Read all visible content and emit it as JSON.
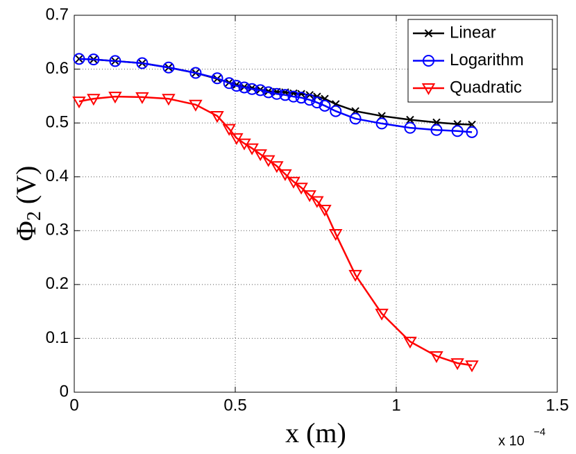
{
  "chart_data": {
    "type": "line",
    "xlabel": "x (m)",
    "x_scale_base": "x 10",
    "x_scale_exponent": "−4",
    "ylabel": "Φ",
    "ylabel_sub": "2",
    "ylabel_unit": "(V)",
    "x": [
      0.015,
      0.06,
      0.127,
      0.211,
      0.293,
      0.377,
      0.444,
      0.481,
      0.504,
      0.528,
      0.552,
      0.578,
      0.603,
      0.629,
      0.655,
      0.681,
      0.705,
      0.731,
      0.754,
      0.778,
      0.812,
      0.873,
      0.955,
      1.043,
      1.125,
      1.19,
      1.235
    ],
    "series": [
      {
        "name": "Linear",
        "color": "#000000",
        "marker": "x",
        "values": [
          0.619,
          0.618,
          0.615,
          0.611,
          0.603,
          0.593,
          0.582,
          0.575,
          0.571,
          0.567,
          0.565,
          0.562,
          0.559,
          0.558,
          0.557,
          0.555,
          0.554,
          0.552,
          0.549,
          0.545,
          0.535,
          0.522,
          0.513,
          0.506,
          0.501,
          0.498,
          0.497
        ]
      },
      {
        "name": "Logarithm",
        "color": "#0000ff",
        "marker": "circle",
        "values": [
          0.619,
          0.618,
          0.615,
          0.611,
          0.603,
          0.593,
          0.583,
          0.574,
          0.569,
          0.566,
          0.563,
          0.561,
          0.557,
          0.554,
          0.552,
          0.549,
          0.547,
          0.543,
          0.538,
          0.532,
          0.522,
          0.508,
          0.499,
          0.491,
          0.487,
          0.485,
          0.483
        ]
      },
      {
        "name": "Quadratic",
        "color": "#ff0000",
        "marker": "triangle-down",
        "values": [
          0.54,
          0.545,
          0.549,
          0.548,
          0.545,
          0.534,
          0.513,
          0.489,
          0.472,
          0.462,
          0.453,
          0.442,
          0.431,
          0.42,
          0.405,
          0.391,
          0.38,
          0.366,
          0.355,
          0.339,
          0.294,
          0.218,
          0.146,
          0.094,
          0.067,
          0.054,
          0.05
        ]
      }
    ],
    "xlim": [
      0,
      1.5
    ],
    "xticks": [
      0,
      0.5,
      1,
      1.5
    ],
    "ylim": [
      0,
      0.7
    ],
    "yticks": [
      0,
      0.1,
      0.2,
      0.3,
      0.4,
      0.5,
      0.6,
      0.7
    ],
    "grid": true,
    "legend": "top-right"
  }
}
